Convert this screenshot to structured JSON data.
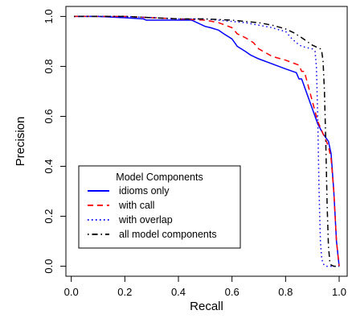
{
  "chart_data": {
    "type": "line",
    "xlabel": "Recall",
    "ylabel": "Precision",
    "xlim": [
      -0.02,
      1.03
    ],
    "ylim": [
      -0.04,
      1.04
    ],
    "xticks": [
      0.0,
      0.2,
      0.4,
      0.6,
      0.8,
      1.0
    ],
    "xtick_labels": [
      "0.0",
      "0.2",
      "0.4",
      "0.6",
      "0.8",
      "1.0"
    ],
    "yticks": [
      0.0,
      0.2,
      0.4,
      0.6,
      0.8,
      1.0
    ],
    "ytick_labels": [
      "0.0",
      "0.2",
      "0.4",
      "0.6",
      "0.8",
      "1.0"
    ],
    "grid": false,
    "legend": {
      "title": "Model Components",
      "placement": "bottom-left"
    },
    "series": [
      {
        "name": "idioms only",
        "color": "#0000ff",
        "dash": "solid",
        "x": [
          0.01,
          0.1,
          0.2,
          0.27,
          0.28,
          0.35,
          0.45,
          0.5,
          0.52,
          0.55,
          0.57,
          0.6,
          0.62,
          0.65,
          0.67,
          0.7,
          0.75,
          0.8,
          0.84,
          0.85,
          0.86,
          0.88,
          0.9,
          0.92,
          0.94,
          0.96,
          0.97,
          0.98,
          0.99,
          1.0
        ],
        "y": [
          1.0,
          1.0,
          0.995,
          0.99,
          0.985,
          0.985,
          0.985,
          0.96,
          0.955,
          0.945,
          0.93,
          0.91,
          0.88,
          0.86,
          0.845,
          0.83,
          0.81,
          0.79,
          0.775,
          0.75,
          0.75,
          0.69,
          0.63,
          0.57,
          0.53,
          0.5,
          0.45,
          0.3,
          0.1,
          0.0
        ]
      },
      {
        "name": "with call",
        "color": "#ff0000",
        "dash": "dashed",
        "x": [
          0.01,
          0.1,
          0.2,
          0.3,
          0.4,
          0.5,
          0.55,
          0.6,
          0.62,
          0.65,
          0.68,
          0.7,
          0.75,
          0.8,
          0.85,
          0.86,
          0.87,
          0.88,
          0.9,
          0.92,
          0.94,
          0.96,
          0.97,
          0.98,
          0.99,
          1.0
        ],
        "y": [
          1.0,
          1.0,
          1.0,
          0.995,
          0.99,
          0.985,
          0.975,
          0.955,
          0.93,
          0.915,
          0.895,
          0.87,
          0.84,
          0.825,
          0.805,
          0.78,
          0.78,
          0.74,
          0.66,
          0.58,
          0.53,
          0.48,
          0.43,
          0.3,
          0.1,
          0.0
        ]
      },
      {
        "name": "with overlap",
        "color": "#0000ff",
        "dash": "dotted",
        "x": [
          0.01,
          0.1,
          0.2,
          0.3,
          0.4,
          0.5,
          0.6,
          0.65,
          0.7,
          0.75,
          0.78,
          0.8,
          0.82,
          0.84,
          0.86,
          0.88,
          0.9,
          0.91,
          0.915,
          0.92,
          0.925,
          0.93,
          0.935,
          0.94,
          0.95,
          0.96,
          0.98,
          1.0
        ],
        "y": [
          1.0,
          1.0,
          1.0,
          0.995,
          0.99,
          0.99,
          0.98,
          0.975,
          0.965,
          0.955,
          0.945,
          0.94,
          0.915,
          0.895,
          0.88,
          0.875,
          0.87,
          0.86,
          0.8,
          0.6,
          0.3,
          0.1,
          0.03,
          0.01,
          0.0,
          0.0,
          0.0,
          0.0
        ]
      },
      {
        "name": "all model components",
        "color": "#000000",
        "dash": "dashdot",
        "x": [
          0.01,
          0.1,
          0.2,
          0.3,
          0.4,
          0.5,
          0.6,
          0.65,
          0.7,
          0.75,
          0.8,
          0.83,
          0.86,
          0.88,
          0.9,
          0.92,
          0.93,
          0.935,
          0.94,
          0.945,
          0.95,
          0.955,
          0.96,
          0.965,
          0.97,
          0.98,
          1.0
        ],
        "y": [
          1.0,
          1.0,
          1.0,
          0.995,
          0.99,
          0.99,
          0.985,
          0.98,
          0.975,
          0.965,
          0.95,
          0.935,
          0.915,
          0.9,
          0.885,
          0.875,
          0.87,
          0.86,
          0.82,
          0.7,
          0.5,
          0.25,
          0.08,
          0.02,
          0.005,
          0.0,
          0.0
        ]
      }
    ]
  }
}
